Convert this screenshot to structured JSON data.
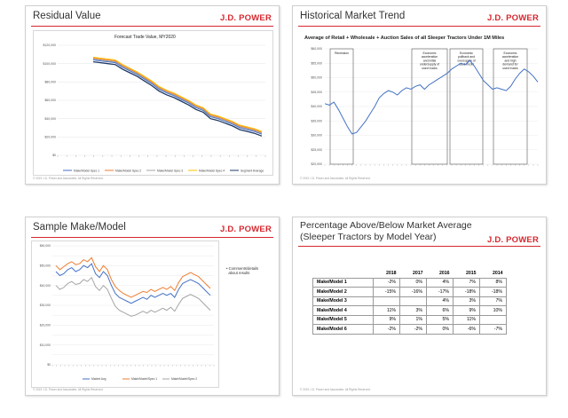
{
  "brand": {
    "logo": "J.D. POWER",
    "accent": "#d7282f"
  },
  "slides": {
    "residual": {
      "title": "Residual Value",
      "footer": "© 2019 J.D. Power and Associates. All Rights Reserved."
    },
    "historical": {
      "title": "Historical Market Trend",
      "footer": "© 2019 J.D. Power and Associates. All Rights Reserved."
    },
    "sample": {
      "title": "Sample Make/Model",
      "comment_line1": "Comments/details",
      "comment_line2": "about results",
      "footer": "© 2019 J.D. Power and Associates. All Rights Reserved."
    },
    "percentage": {
      "title": "Percentage Above/Below Market Average (Sleeper Tractors by Model Year)",
      "footer": "© 2019 J.D. Power and Associates. All Rights Reserved."
    }
  },
  "chart_data": [
    {
      "type": "line",
      "title": "Forecast Trade Value, MY2020",
      "ylim": [
        0,
        120000
      ],
      "yticks": [
        "$0",
        "$20,000",
        "$40,000",
        "$60,000",
        "$80,000",
        "$100,000",
        "$120,000"
      ],
      "legend_position": "bottom",
      "grid": true,
      "series": [
        {
          "name": "Make/Model Spec 1",
          "color": "#4472c4",
          "values": [
            104000,
            103000,
            102000,
            101000,
            96000,
            92000,
            88000,
            83000,
            78000,
            72000,
            68000,
            65000,
            61000,
            57000,
            52000,
            49000,
            42000,
            40000,
            37000,
            34000,
            30000,
            28000,
            26000,
            23000
          ]
        },
        {
          "name": "Make/Model Spec 2",
          "color": "#ed7d31",
          "values": [
            106000,
            105000,
            104000,
            103000,
            98000,
            94000,
            90000,
            85000,
            80000,
            74000,
            70000,
            67000,
            63000,
            59000,
            54000,
            51000,
            44000,
            42000,
            39000,
            36000,
            32000,
            30000,
            28000,
            25000
          ]
        },
        {
          "name": "Make/Model Spec 3",
          "color": "#a5a5a5",
          "values": [
            105000,
            104000,
            103000,
            102000,
            97000,
            93000,
            89000,
            84000,
            79000,
            73000,
            69000,
            66000,
            62000,
            58000,
            53000,
            50000,
            43000,
            41000,
            38000,
            35000,
            31000,
            29000,
            27000,
            24000
          ]
        },
        {
          "name": "Make/Model Spec 4",
          "color": "#ffc000",
          "values": [
            107000,
            106000,
            105000,
            104000,
            99000,
            95000,
            91000,
            86000,
            81000,
            75000,
            71000,
            68000,
            64000,
            60000,
            55000,
            52000,
            45000,
            43000,
            40000,
            37000,
            33000,
            31000,
            29000,
            26000
          ]
        },
        {
          "name": "Segment Average",
          "color": "#1f3864",
          "values": [
            102000,
            101000,
            100000,
            99000,
            94000,
            90000,
            86000,
            81000,
            76000,
            70000,
            66000,
            63000,
            59000,
            55000,
            50000,
            47000,
            40000,
            38000,
            35000,
            32000,
            28000,
            26000,
            24000,
            21000
          ]
        }
      ]
    },
    {
      "type": "line",
      "title": "Average of Retail + Wholesale + Auction Sales of all Sleeper Tractors Under 1M Miles",
      "ylim": [
        20000,
        60000
      ],
      "yticks": [
        "$20,000",
        "$25,000",
        "$30,000",
        "$35,000",
        "$40,000",
        "$45,000",
        "$50,000",
        "$55,000",
        "$60,000"
      ],
      "annotations": [
        {
          "label": "Recession"
        },
        {
          "label": "Economic acceleration and initial undersupply of used trucks"
        },
        {
          "label": "Economic pullback and oversupply of used trucks"
        },
        {
          "label": "Economic acceleration and high demand for used trucks"
        }
      ],
      "series": [
        {
          "color": "#4472c4",
          "values": [
            41000,
            40500,
            41500,
            39000,
            36000,
            33000,
            30500,
            31000,
            33000,
            35000,
            37500,
            40000,
            43000,
            44500,
            45500,
            45000,
            44000,
            45500,
            46500,
            46000,
            47000,
            47500,
            46000,
            47500,
            48500,
            49500,
            50500,
            51500,
            53000,
            54000,
            55000,
            54500,
            56000,
            54000,
            51500,
            49000,
            47500,
            46000,
            46500,
            46000,
            45500,
            47000,
            49500,
            51500,
            53000,
            52000,
            50500,
            48500
          ]
        }
      ]
    },
    {
      "type": "line",
      "ylim": [
        0,
        60000
      ],
      "yticks": [
        "$0",
        "$5,000",
        "$10,000",
        "$15,000",
        "$20,000",
        "$25,000",
        "$30,000",
        "$35,000",
        "$40,000",
        "$45,000",
        "$50,000",
        "$55,000",
        "$60,000"
      ],
      "legend_position": "bottom",
      "series": [
        {
          "name": "Market Avg",
          "color": "#4472c4",
          "values": [
            47000,
            45000,
            46000,
            48000,
            49000,
            47000,
            48000,
            50000,
            49000,
            51000,
            46000,
            44000,
            47000,
            45000,
            40000,
            36000,
            34000,
            33000,
            32000,
            31000,
            32000,
            33000,
            34000,
            33000,
            35000,
            34000,
            35000,
            36000,
            35000,
            36000,
            34000,
            38000,
            41000,
            42000,
            43000,
            42000,
            41000,
            39000,
            37000,
            35000
          ]
        },
        {
          "name": "Make/Model/Spec 1",
          "color": "#ed7d31",
          "values": [
            50000,
            48000,
            49500,
            51000,
            52000,
            50500,
            51000,
            53000,
            52000,
            54000,
            49500,
            47000,
            50000,
            48000,
            43000,
            39500,
            37500,
            36000,
            35000,
            34000,
            35000,
            36000,
            37000,
            36500,
            38000,
            37000,
            38000,
            39000,
            38000,
            39500,
            37500,
            41500,
            44500,
            45500,
            46500,
            45500,
            44500,
            42500,
            40500,
            38500
          ]
        },
        {
          "name": "Make/Model/Spec 2",
          "color": "#a5a5a5",
          "values": [
            40000,
            38000,
            39000,
            41000,
            42000,
            40500,
            41000,
            43000,
            42000,
            44000,
            39500,
            37500,
            40000,
            38000,
            33500,
            29500,
            27500,
            26500,
            25500,
            24500,
            25000,
            26000,
            27000,
            26000,
            27500,
            26500,
            27500,
            28500,
            27500,
            29000,
            27000,
            30500,
            33500,
            34500,
            35500,
            34500,
            33500,
            31500,
            29500,
            27500
          ]
        }
      ]
    },
    {
      "type": "table",
      "columns": [
        "",
        "2018",
        "2017",
        "2016",
        "2015",
        "2014"
      ],
      "rows": [
        [
          "Make/Model 1",
          "-2%",
          "0%",
          "4%",
          "7%",
          "8%"
        ],
        [
          "Make/Model 2",
          "-15%",
          "-16%",
          "-17%",
          "-18%",
          "-18%"
        ],
        [
          "Make/Model 3",
          "",
          "",
          "4%",
          "3%",
          "7%"
        ],
        [
          "Make/Model 4",
          "11%",
          "3%",
          "6%",
          "9%",
          "10%"
        ],
        [
          "Make/Model 5",
          "9%",
          "1%",
          "5%",
          "11%",
          ""
        ],
        [
          "Make/Model 6",
          "-2%",
          "-2%",
          "0%",
          "-6%",
          "-7%"
        ]
      ]
    }
  ]
}
